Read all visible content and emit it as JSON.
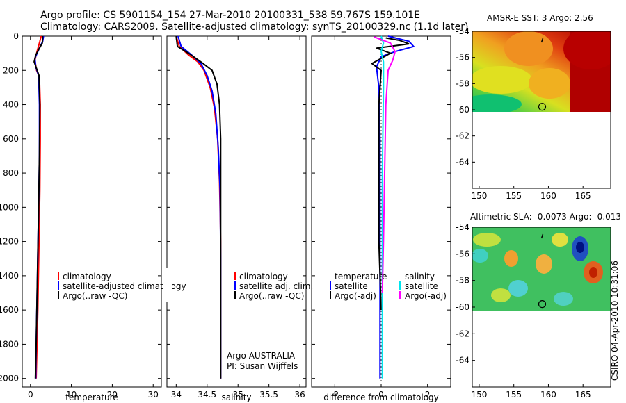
{
  "header": {
    "title_line1": "Argo profile: CS 5901154_154 27-Mar-2010 20100331_538 59.767S 159.101E",
    "title_line2": "Climatology: CARS2009. Satellite-adjusted climatology: synTS_20100329.nc (1.1d later)"
  },
  "side_label": "CSIRO 04-Apr-2010 10:31:06",
  "colors": {
    "climatology": "#ff0000",
    "satellite": "#0000ff",
    "argo": "#000000",
    "sat_salinity": "#00e5ee",
    "argo_salinity": "#ff00ff"
  },
  "chart_data": [
    {
      "type": "line",
      "id": "temperature",
      "xlabel": "temperature",
      "ylabel": "",
      "xlim": [
        -2,
        32
      ],
      "ylim": [
        2050,
        0
      ],
      "xticks": [
        0,
        10,
        20,
        30
      ],
      "yticks": [
        0,
        200,
        400,
        600,
        800,
        1000,
        1200,
        1400,
        1600,
        1800,
        2000
      ],
      "legend": {
        "placement": "lower-middle",
        "entries": [
          "climatology",
          "satellite-adjusted climatology",
          "Argo(..raw -QC)"
        ]
      },
      "series": [
        {
          "name": "climatology",
          "color": "#ff0000",
          "points": [
            [
              2.6,
              0
            ],
            [
              2.3,
              30
            ],
            [
              1.6,
              90
            ],
            [
              1.1,
              140
            ],
            [
              1.5,
              200
            ],
            [
              2.2,
              240
            ],
            [
              2.4,
              400
            ],
            [
              2.4,
              600
            ],
            [
              2.3,
              900
            ],
            [
              2.1,
              1200
            ],
            [
              1.8,
              1600
            ],
            [
              1.4,
              2000
            ]
          ]
        },
        {
          "name": "satellite-adjusted climatology",
          "color": "#0000ff",
          "points": [
            [
              3.2,
              0
            ],
            [
              3.0,
              30
            ],
            [
              2.0,
              80
            ],
            [
              1.1,
              130
            ],
            [
              1.3,
              180
            ],
            [
              2.0,
              230
            ],
            [
              2.2,
              400
            ],
            [
              2.2,
              700
            ],
            [
              2.0,
              1000
            ],
            [
              1.7,
              1400
            ],
            [
              1.4,
              1800
            ],
            [
              1.3,
              2000
            ]
          ]
        },
        {
          "name": "Argo(..raw -QC)",
          "color": "#000000",
          "points": [
            [
              3.0,
              0
            ],
            [
              2.9,
              40
            ],
            [
              2.2,
              70
            ],
            [
              1.3,
              110
            ],
            [
              0.9,
              150
            ],
            [
              1.5,
              190
            ],
            [
              2.1,
              230
            ],
            [
              2.3,
              400
            ],
            [
              2.2,
              700
            ],
            [
              2.0,
              1000
            ],
            [
              1.7,
              1400
            ],
            [
              1.4,
              1800
            ],
            [
              1.2,
              2000
            ]
          ]
        }
      ]
    },
    {
      "type": "line",
      "id": "salinity",
      "xlabel": "salinity",
      "ylabel": "",
      "xlim": [
        33.85,
        36.1
      ],
      "ylim": [
        2050,
        0
      ],
      "xticks": [
        34,
        34.5,
        35,
        35.5,
        36
      ],
      "legend": {
        "placement": "lower-middle",
        "entries": [
          "climatology",
          "satellite adj. clim.",
          "Argo(..raw -QC)"
        ]
      },
      "annotation": [
        "Argo AUSTRALIA",
        "PI: Susan Wijffels"
      ],
      "series": [
        {
          "name": "climatology",
          "color": "#ff0000",
          "points": [
            [
              34.0,
              0
            ],
            [
              34.05,
              60
            ],
            [
              34.2,
              110
            ],
            [
              34.35,
              150
            ],
            [
              34.45,
              200
            ],
            [
              34.55,
              300
            ],
            [
              34.62,
              420
            ],
            [
              34.67,
              600
            ],
            [
              34.7,
              850
            ],
            [
              34.72,
              1200
            ],
            [
              34.72,
              1600
            ],
            [
              34.72,
              2000
            ]
          ]
        },
        {
          "name": "satellite adj. clim.",
          "color": "#0000ff",
          "points": [
            [
              34.03,
              0
            ],
            [
              34.08,
              60
            ],
            [
              34.25,
              110
            ],
            [
              34.4,
              160
            ],
            [
              34.5,
              230
            ],
            [
              34.58,
              320
            ],
            [
              34.64,
              450
            ],
            [
              34.68,
              650
            ],
            [
              34.71,
              900
            ],
            [
              34.72,
              1300
            ],
            [
              34.72,
              1700
            ],
            [
              34.72,
              2000
            ]
          ]
        },
        {
          "name": "Argo(..raw -QC)",
          "color": "#000000",
          "points": [
            [
              34.0,
              0
            ],
            [
              34.02,
              60
            ],
            [
              34.2,
              100
            ],
            [
              34.4,
              150
            ],
            [
              34.58,
              200
            ],
            [
              34.66,
              280
            ],
            [
              34.7,
              400
            ],
            [
              34.72,
              600
            ],
            [
              34.72,
              900
            ],
            [
              34.72,
              1300
            ],
            [
              34.72,
              1700
            ],
            [
              34.72,
              2000
            ]
          ]
        }
      ]
    },
    {
      "type": "line",
      "id": "difference",
      "xlabel": "difference from climatology",
      "ylabel": "",
      "xlim": [
        -3,
        3
      ],
      "ylim": [
        2050,
        0
      ],
      "xticks": [
        -2,
        0,
        2
      ],
      "legend": {
        "placement": "lower-middle",
        "entries": [
          "temperature",
          "satellite",
          "Argo(-adj)",
          "salinity",
          "satellite",
          "Argo(-adj)"
        ]
      },
      "series": [
        {
          "name": "temperature satellite",
          "color": "#0000ff",
          "points": [
            [
              0.3,
              0
            ],
            [
              1.2,
              30
            ],
            [
              1.4,
              60
            ],
            [
              0.6,
              90
            ],
            [
              0.0,
              120
            ],
            [
              -0.2,
              180
            ],
            [
              -0.1,
              300
            ],
            [
              -0.05,
              600
            ],
            [
              -0.05,
              1200
            ],
            [
              -0.05,
              2000
            ]
          ]
        },
        {
          "name": "temperature Argo(-adj)",
          "color": "#000000",
          "points": [
            [
              0.2,
              10
            ],
            [
              0.8,
              25
            ],
            [
              1.2,
              45
            ],
            [
              -0.2,
              70
            ],
            [
              0.4,
              100
            ],
            [
              -0.4,
              160
            ],
            [
              0.0,
              200
            ],
            [
              -0.1,
              400
            ],
            [
              -0.1,
              800
            ],
            [
              -0.1,
              1200
            ],
            [
              0.0,
              1600
            ]
          ]
        },
        {
          "name": "salinity satellite",
          "color": "#00e5ee",
          "points": [
            [
              0.0,
              0
            ],
            [
              0.1,
              40
            ],
            [
              0.0,
              90
            ],
            [
              0.1,
              150
            ],
            [
              0.1,
              300
            ],
            [
              0.05,
              800
            ],
            [
              0.05,
              1500
            ],
            [
              0.05,
              2000
            ]
          ]
        },
        {
          "name": "salinity Argo(-adj)",
          "color": "#ff00ff",
          "points": [
            [
              -0.3,
              5
            ],
            [
              0.4,
              40
            ],
            [
              0.6,
              90
            ],
            [
              0.5,
              140
            ],
            [
              0.3,
              200
            ],
            [
              0.2,
              400
            ],
            [
              0.15,
              800
            ],
            [
              0.1,
              1200
            ],
            [
              0.05,
              1500
            ]
          ]
        }
      ]
    },
    {
      "type": "heatmap",
      "id": "sst_map",
      "title": "AMSR-E SST: 3 Argo: 2.56",
      "xlim": [
        149,
        169
      ],
      "ylim": [
        -66,
        -54
      ],
      "xticks": [
        150,
        155,
        160,
        165
      ],
      "yticks": [
        -54,
        -56,
        -58,
        -60,
        -62,
        -64
      ],
      "float_marker": {
        "lon": 159.1,
        "lat": -59.77
      }
    },
    {
      "type": "heatmap",
      "id": "sla_map",
      "title": "Altimetric SLA: -0.0073 Argo: -0.013",
      "xlim": [
        149,
        169
      ],
      "ylim": [
        -66,
        -54
      ],
      "xticks": [
        150,
        155,
        160,
        165
      ],
      "yticks": [
        -54,
        -56,
        -58,
        -60,
        -62,
        -64
      ],
      "float_marker": {
        "lon": 159.1,
        "lat": -59.77
      }
    }
  ]
}
